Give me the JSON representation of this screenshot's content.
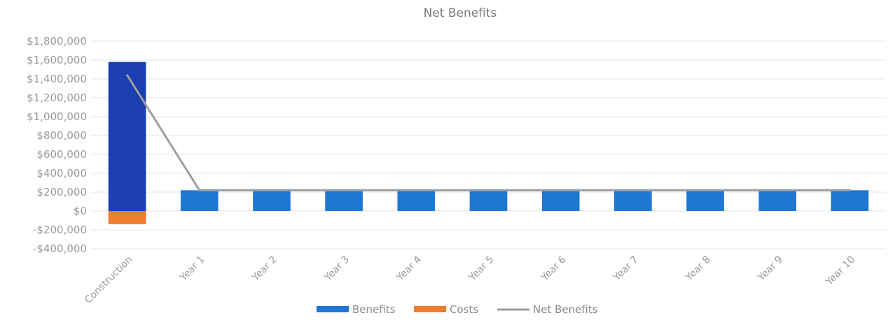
{
  "chart_data": {
    "type": "bar",
    "title": "Net Benefits",
    "xlabel": "",
    "ylabel": "",
    "categories": [
      "Construction",
      "Year 1",
      "Year 2",
      "Year 3",
      "Year 4",
      "Year 5",
      "Year 6",
      "Year 7",
      "Year 8",
      "Year 9",
      "Year 10"
    ],
    "series": [
      {
        "name": "Benefits",
        "kind": "bar",
        "color": "#1f77d4",
        "values": [
          1580000,
          220000,
          220000,
          220000,
          220000,
          220000,
          220000,
          220000,
          220000,
          220000,
          220000
        ]
      },
      {
        "name": "Costs",
        "kind": "bar",
        "color": "#ed7d31",
        "values": [
          -140000,
          0,
          0,
          0,
          0,
          0,
          0,
          0,
          0,
          0,
          0
        ]
      },
      {
        "name": "Net Benefits",
        "kind": "line",
        "color": "#9e9e9e",
        "values": [
          1440000,
          220000,
          220000,
          220000,
          220000,
          220000,
          220000,
          220000,
          220000,
          220000,
          220000
        ]
      }
    ],
    "ylim": [
      -400000,
      1800000
    ],
    "yticks": [
      {
        "value": 1800000,
        "label": "$1,800,000"
      },
      {
        "value": 1600000,
        "label": "$1,600,000"
      },
      {
        "value": 1400000,
        "label": "$1,400,000"
      },
      {
        "value": 1200000,
        "label": "$1,200,000"
      },
      {
        "value": 1000000,
        "label": "$1,000,000"
      },
      {
        "value": 800000,
        "label": "$800,000"
      },
      {
        "value": 600000,
        "label": "$600,000"
      },
      {
        "value": 400000,
        "label": "$400,000"
      },
      {
        "value": 200000,
        "label": "$200,000"
      },
      {
        "value": 0,
        "label": "$0"
      },
      {
        "value": -200000,
        "label": "-$200,000"
      },
      {
        "value": -400000,
        "label": "-$400,000"
      }
    ],
    "grid": true,
    "legend_position": "bottom"
  }
}
